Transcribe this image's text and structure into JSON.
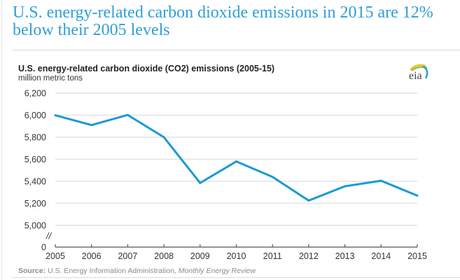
{
  "headline": "U.S. energy-related carbon dioxide emissions in 2015 are 12% below their 2005 levels",
  "logo": {
    "text": "eia",
    "icon": "eia-logo-icon"
  },
  "source": {
    "label": "Source:",
    "text": " U.S. Energy Information Administration, ",
    "publication": "Monthly Energy Review"
  },
  "colors": {
    "headline": "#2e9fd6",
    "series": "#1a9ad6",
    "grid": "#e3e3e3"
  },
  "chart_data": {
    "type": "line",
    "title": "U.S. energy-related carbon dioxide (CO2) emissions (2005-15)",
    "subtitle": "million metric tons",
    "xlabel": "",
    "ylabel": "million metric tons",
    "categories": [
      "2005",
      "2006",
      "2007",
      "2008",
      "2009",
      "2010",
      "2011",
      "2012",
      "2013",
      "2014",
      "2015"
    ],
    "series": [
      {
        "name": "CO2 emissions",
        "values": [
          5999,
          5910,
          6002,
          5800,
          5385,
          5580,
          5440,
          5225,
          5355,
          5405,
          5270
        ]
      }
    ],
    "y_ticks": [
      {
        "value": 6200,
        "label": "6,200"
      },
      {
        "value": 6000,
        "label": "6,000"
      },
      {
        "value": 5800,
        "label": "5,800"
      },
      {
        "value": 5600,
        "label": "5,600"
      },
      {
        "value": 5400,
        "label": "5,400"
      },
      {
        "value": 5200,
        "label": "5,200"
      },
      {
        "value": 5000,
        "label": "5,000"
      },
      {
        "value": 0,
        "label": "0"
      }
    ],
    "axis_break_label": "//",
    "ylim": [
      5000,
      6200
    ],
    "y_axis_broken": true,
    "grid": true,
    "legend": "none"
  }
}
